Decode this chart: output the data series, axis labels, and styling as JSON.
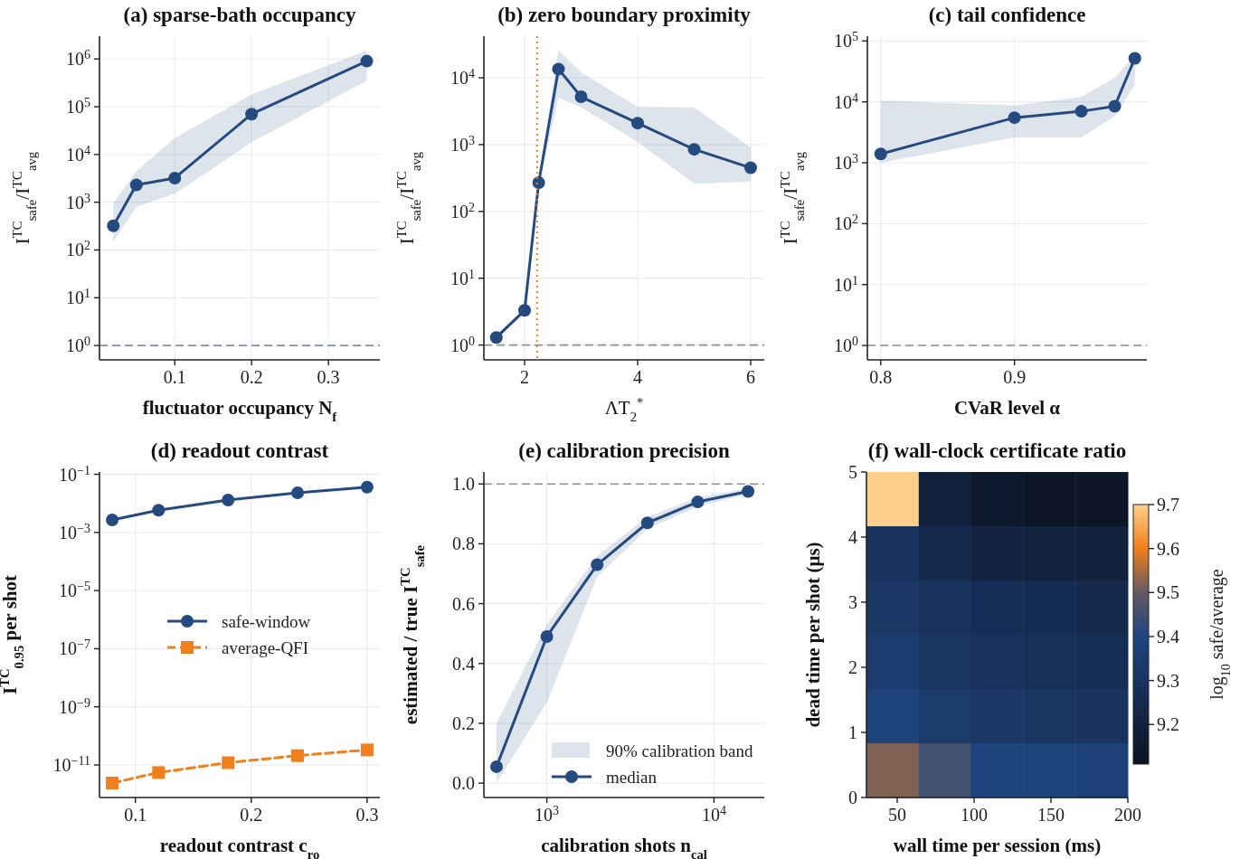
{
  "chart_data": [
    {
      "type": "line",
      "title": "(a) sparse-bath occupancy",
      "xlabel": "fluctuator occupancy N$_{f}$",
      "ylabel": "I$^{TC}$$_{safe}$/I$^{TC}$$_{avg}$",
      "x": [
        0.02,
        0.05,
        0.1,
        0.2,
        0.35
      ],
      "series": [
        {
          "color": "#244a7f",
          "values": [
            320,
            2300,
            3200,
            70000,
            900000
          ],
          "lower": [
            150,
            800,
            1500,
            18000,
            350000
          ],
          "upper": [
            950,
            4500,
            22000,
            180000,
            1500000
          ]
        }
      ],
      "xlim": [
        0.002,
        0.367
      ],
      "xticks": [
        0.1,
        0.2,
        0.3
      ],
      "ylim": [
        0.5,
        3000000
      ],
      "yticks": [
        {
          "value": 1,
          "label": "10$^{0}$"
        },
        {
          "value": 10,
          "label": "10$^{1}$"
        },
        {
          "value": 100,
          "label": "10$^{2}$"
        },
        {
          "value": 1000,
          "label": "10$^{3}$"
        },
        {
          "value": 10000,
          "label": "10$^{4}$"
        },
        {
          "value": 100000,
          "label": "10$^{5}$"
        },
        {
          "value": 1000000,
          "label": "10$^{6}$"
        }
      ],
      "log": "y",
      "grid": true,
      "marker": "circle",
      "line_style": "solid",
      "ref_lines": [
        {
          "axis": "y",
          "value": 1,
          "color": "#8a8fa3",
          "line_style": "dashed"
        }
      ]
    },
    {
      "type": "line",
      "title": "(b) zero boundary proximity",
      "xlabel": "ΛT$_{2}$$^{*}$",
      "ylabel": "I$^{TC}$$_{safe}$/I$^{TC}$$_{avg}$",
      "x": [
        1.5,
        2,
        2.25,
        2.6,
        3,
        4,
        5,
        6
      ],
      "series": [
        {
          "color": "#244a7f",
          "values": [
            1.3,
            3.3,
            270,
            13500,
            5200,
            2100,
            850,
            450
          ],
          "lower": [
            1.2,
            3.1,
            250,
            5000,
            3600,
            1100,
            260,
            280
          ],
          "upper": [
            1.4,
            3.5,
            300,
            26000,
            12000,
            3700,
            3600,
            900
          ]
        }
      ],
      "xlim": [
        1.28,
        6.24
      ],
      "xticks": [
        2,
        4,
        6
      ],
      "ylim": [
        0.6,
        42000
      ],
      "yticks": [
        {
          "value": 1,
          "label": "10$^{0}$"
        },
        {
          "value": 10,
          "label": "10$^{1}$"
        },
        {
          "value": 100,
          "label": "10$^{2}$"
        },
        {
          "value": 1000,
          "label": "10$^{3}$"
        },
        {
          "value": 10000,
          "label": "10$^{4}$"
        }
      ],
      "log": "y",
      "grid": true,
      "marker": "circle",
      "line_style": "solid",
      "ref_lines": [
        {
          "axis": "y",
          "value": 1,
          "color": "#8a8fa3",
          "line_style": "dashed"
        },
        {
          "axis": "x",
          "value": 2.22,
          "color": "#f07f1e",
          "line_style": "dotted"
        }
      ]
    },
    {
      "type": "line",
      "title": "(c) tail confidence",
      "xlabel": "CVaR level α",
      "ylabel": "I$^{TC}$$_{safe}$/I$^{TC}$$_{avg}$",
      "x": [
        0.8,
        0.9,
        0.95,
        0.975,
        0.99
      ],
      "series": [
        {
          "color": "#244a7f",
          "values": [
            1400,
            5500,
            7000,
            8500,
            52000
          ],
          "lower": [
            1000,
            2600,
            2600,
            5800,
            19000
          ],
          "upper": [
            10500,
            8800,
            12000,
            25000,
            60000
          ]
        }
      ],
      "xlim": [
        0.79,
        0.999
      ],
      "xticks": [
        0.8,
        0.9
      ],
      "ylim": [
        0.58,
        120000
      ],
      "yticks": [
        {
          "value": 1,
          "label": "10$^{0}$"
        },
        {
          "value": 10,
          "label": "10$^{1}$"
        },
        {
          "value": 100,
          "label": "10$^{2}$"
        },
        {
          "value": 1000,
          "label": "10$^{3}$"
        },
        {
          "value": 10000,
          "label": "10$^{4}$"
        },
        {
          "value": 100000,
          "label": "10$^{5}$"
        }
      ],
      "log": "y",
      "grid": true,
      "marker": "circle",
      "line_style": "solid",
      "ref_lines": [
        {
          "axis": "y",
          "value": 1,
          "color": "#8a8fa3",
          "line_style": "dashed"
        }
      ]
    },
    {
      "type": "line",
      "title": "(d) readout contrast",
      "xlabel": "readout contrast c$_{ro}$",
      "ylabel": "I$^{TC}$$_{0.95}$ per shot",
      "x": [
        0.08,
        0.12,
        0.18,
        0.24,
        0.3
      ],
      "series": [
        {
          "name": "safe-window",
          "color": "#244a7f",
          "values": [
            0.0027,
            0.0058,
            0.013,
            0.023,
            0.036
          ]
        },
        {
          "name": "average-QFI",
          "color": "#f07f1e",
          "values": [
            2.4e-12,
            5.5e-12,
            1.2e-11,
            2.1e-11,
            3.3e-11
          ],
          "marker": "square",
          "line_style": "dashed"
        }
      ],
      "xlim": [
        0.069,
        0.311
      ],
      "xticks": [
        0.1,
        0.2,
        0.3
      ],
      "ylim": [
        7.6e-13,
        0.12
      ],
      "yticks": [
        {
          "value": 1e-11,
          "label": "10$^{−11}$"
        },
        {
          "value": 1e-09,
          "label": "10$^{−9}$"
        },
        {
          "value": 1e-07,
          "label": "10$^{−7}$"
        },
        {
          "value": 1e-05,
          "label": "10$^{−5}$"
        },
        {
          "value": 0.001,
          "label": "10$^{−3}$"
        },
        {
          "value": 0.1,
          "label": "10$^{−1}$"
        }
      ],
      "log": "y",
      "grid": true,
      "marker": "circle",
      "line_style": "solid",
      "legend": "center right"
    },
    {
      "type": "line",
      "title": "(e) calibration precision",
      "xlabel": "calibration shots n$_{cal}$",
      "ylabel": "estimated / true I$^{TC}$$_{safe}$",
      "x": [
        500,
        1000,
        2000,
        4000,
        8000,
        16000
      ],
      "annotations": [
        "90% calibration band"
      ],
      "series": [
        {
          "name": "median",
          "color": "#244a7f",
          "values": [
            0.055,
            0.49,
            0.73,
            0.87,
            0.94,
            0.975
          ],
          "lower": [
            0.0,
            0.27,
            0.69,
            0.85,
            0.925,
            0.965
          ],
          "upper": [
            0.2,
            0.53,
            0.76,
            0.89,
            0.955,
            0.985
          ]
        }
      ],
      "xlim": [
        420,
        20000
      ],
      "xticks": [
        {
          "value": 1000,
          "label": "10$^{3}$"
        },
        {
          "value": 10000,
          "label": "10$^{4}$"
        }
      ],
      "ylim": [
        -0.048,
        1.04
      ],
      "yticks": [
        {
          "value": 0,
          "label": "0.0"
        },
        0.2,
        0.4,
        0.6,
        0.8,
        {
          "value": 1,
          "label": "1.0"
        }
      ],
      "log": "x",
      "grid": true,
      "marker": "circle",
      "line_style": "solid",
      "legend": "bottom",
      "ref_lines": [
        {
          "axis": "y",
          "value": 1,
          "color": "#8a8fa3",
          "line_style": "dashed"
        }
      ]
    },
    {
      "type": "heatmap",
      "title": "(f) wall-clock certificate ratio",
      "xlabel": "wall time per session (ms)",
      "ylabel": "dead time per shot (μs)",
      "clabel": "log$_{10}$ safe/average",
      "cells": [
        [
          9.7,
          9.19,
          9.15,
          9.13,
          9.13
        ],
        [
          9.3,
          9.24,
          9.21,
          9.2,
          9.19
        ],
        [
          9.32,
          9.29,
          9.27,
          9.26,
          9.24
        ],
        [
          9.35,
          9.31,
          9.29,
          9.28,
          9.27
        ],
        [
          9.38,
          9.34,
          9.32,
          9.31,
          9.3
        ],
        [
          9.52,
          9.45,
          9.39,
          9.38,
          9.37
        ]
      ],
      "xlim": [
        30,
        200
      ],
      "xticks": [
        50,
        100,
        150,
        200
      ],
      "ylim": [
        0,
        5
      ],
      "yticks": [
        0,
        1,
        2,
        3,
        4,
        5
      ],
      "clim": [
        9.11,
        9.7
      ],
      "cticks": [
        9.2,
        9.3,
        9.4,
        9.5,
        9.6,
        9.7
      ]
    }
  ]
}
